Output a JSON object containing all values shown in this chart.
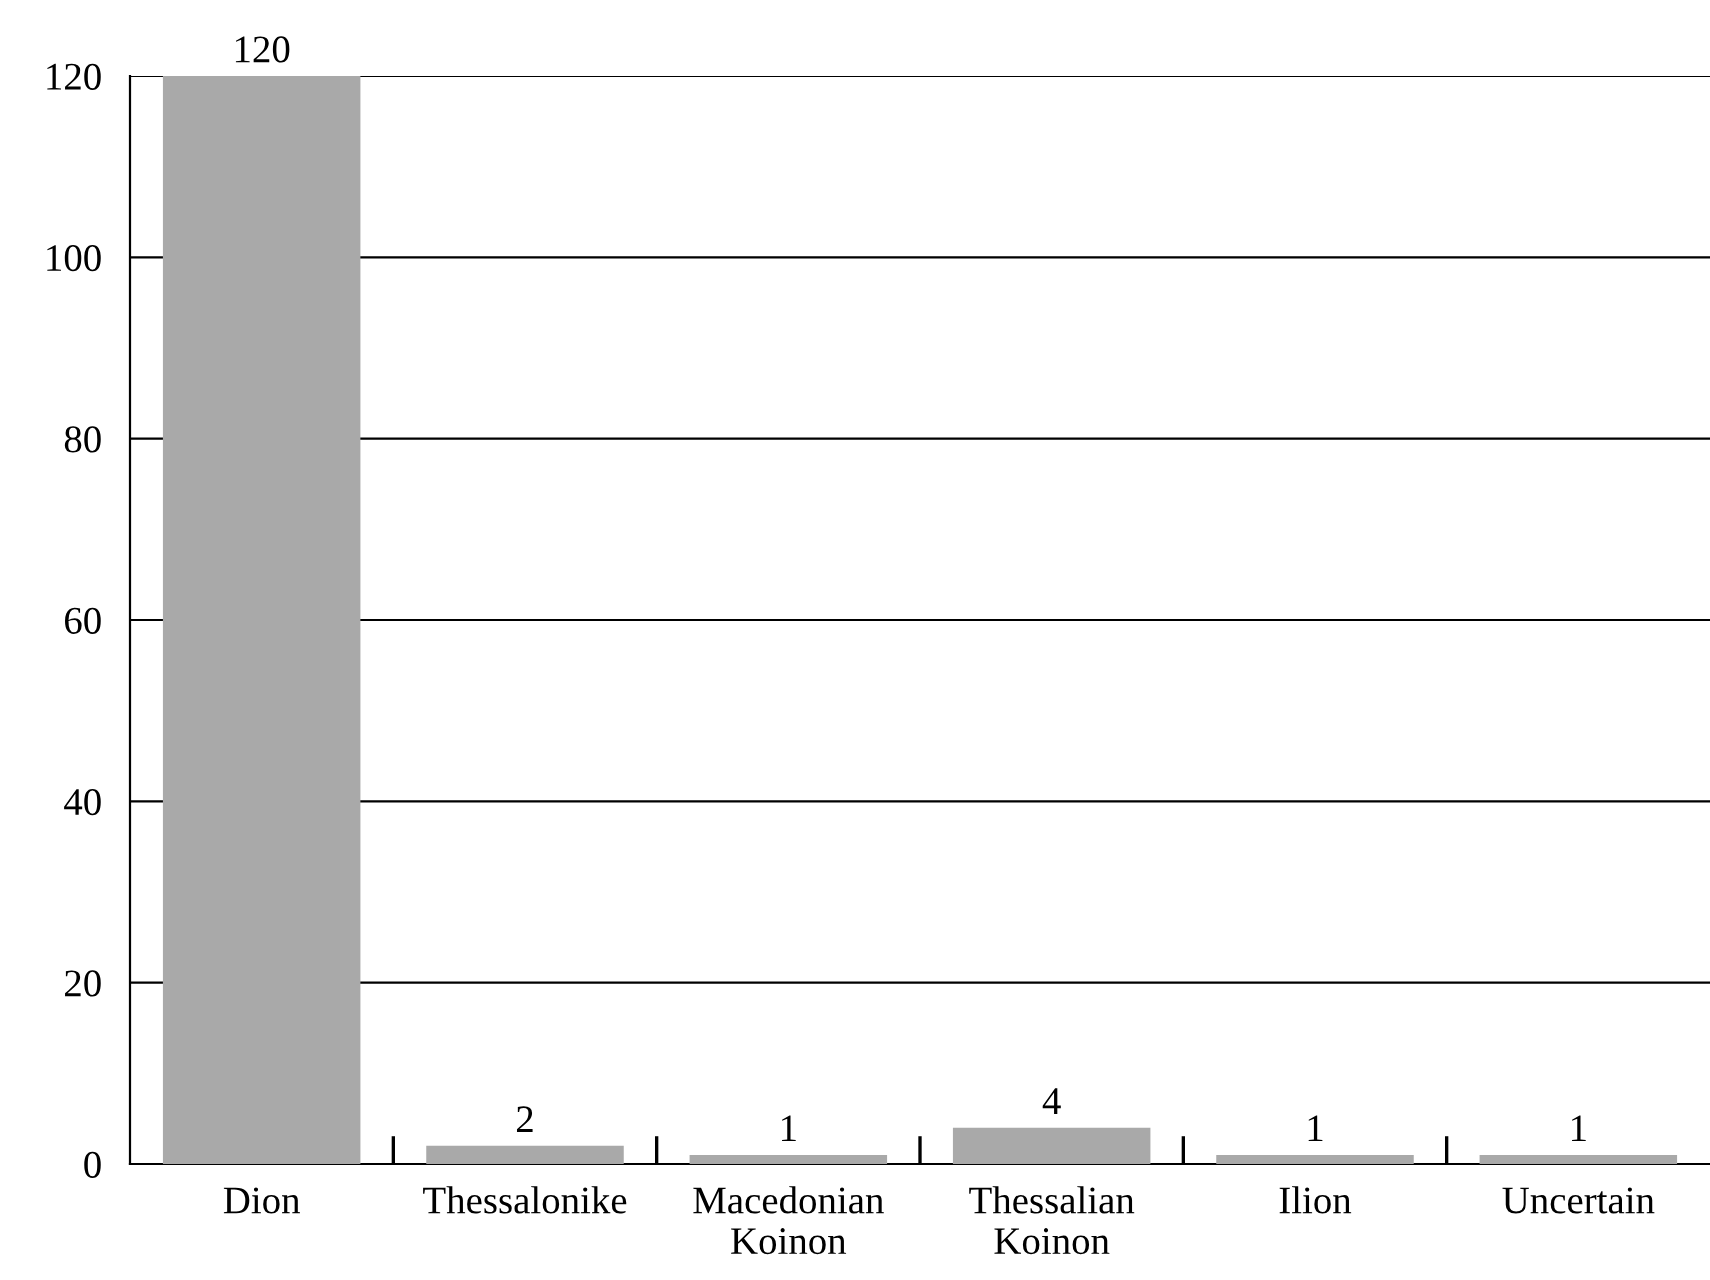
{
  "chart_data": {
    "type": "bar",
    "categories": [
      "Dion",
      "Thessalonike",
      "Macedonian\nKoinon",
      "Thessalian\nKoinon",
      "Ilion",
      "Uncertain"
    ],
    "values": [
      120,
      2,
      1,
      4,
      1,
      1
    ],
    "color": "#a9a9a9",
    "ylim": [
      0,
      120
    ],
    "yticks": [
      0,
      20,
      40,
      60,
      80,
      100,
      120
    ],
    "grid": "y",
    "data_labels": true
  }
}
